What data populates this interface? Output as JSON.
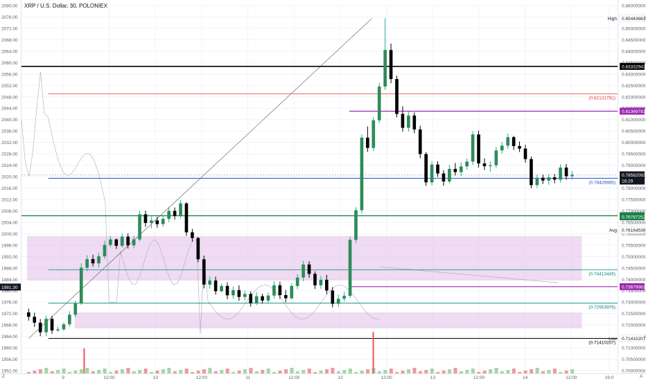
{
  "chart_data": {
    "type": "candlestick",
    "title": "XRP / U.S. Dollar, 30, POLONIEX",
    "x_ticks": [
      "9",
      "12:00",
      "10",
      "12:00",
      "11",
      "12:00",
      "12",
      "12:00",
      "13",
      "12:00",
      "14",
      "12:00",
      "19:0"
    ],
    "left_axis": {
      "ylim": [
        1952,
        2080
      ],
      "ticks": [
        "2080.00",
        "2076.00",
        "2072.00",
        "2068.00",
        "2064.00",
        "2060.00",
        "2056.00",
        "2052.00",
        "2048.00",
        "2044.00",
        "2040.00",
        "2036.00",
        "2032.00",
        "2028.00",
        "2024.00",
        "2020.00",
        "2016.00",
        "2012.00",
        "2008.00",
        "2004.00",
        "2000.00",
        "1996.00",
        "1992.00",
        "1988.00",
        "1984.00",
        "1980.00",
        "1976.00",
        "1972.00",
        "1968.00",
        "1964.00",
        "1960.00",
        "1956.00",
        "1952.00"
      ],
      "current_label": "1981.30"
    },
    "right_axis": {
      "ylim": [
        0.7,
        0.86
      ],
      "ticks": [
        "0.86000000",
        "0.85500000",
        "0.85000000",
        "0.84500000",
        "0.84000000",
        "0.83500000",
        "0.83000000",
        "0.82500000",
        "0.82000000",
        "0.81500000",
        "0.81000000",
        "0.80500000",
        "0.80000000",
        "0.79500000",
        "0.79000000",
        "0.78500000",
        "0.78000000",
        "0.77500000",
        "0.77000000",
        "0.76500000",
        "0.76000000",
        "0.75500000",
        "0.75000000",
        "0.74500000",
        "0.74000000",
        "0.73500000",
        "0.73000000",
        "0.72500000",
        "0.72000000",
        "0.71500000",
        "0.71000000",
        "0.70500000",
        "0.70000000"
      ]
    },
    "high": {
      "label": "High",
      "value": "0.85443663",
      "price": 0.85444
    },
    "low": {
      "label": "Low",
      "value": "0.71410207",
      "price": 0.7141
    },
    "avg": {
      "label": "Avg",
      "value": "0.76164530",
      "price": 0.7616
    },
    "last_price": {
      "value": "0.78582092",
      "countdown": "16:29",
      "price": 0.7858,
      "color": "#131722"
    },
    "levels": [
      {
        "price": 0.83333,
        "color": "#000000",
        "width": 1.6,
        "badge": "0.83332943",
        "start": 0.0
      },
      {
        "price": 0.82132,
        "color": "#e53935",
        "width": 0.8,
        "text": "(0.82131791)",
        "start": 0.045
      },
      {
        "price": 0.8137,
        "color": "#9c27b0",
        "width": 1.2,
        "badge": "0.81369783",
        "start": 0.55
      },
      {
        "price": 0.78427,
        "color": "#1e50c8",
        "width": 1.0,
        "text": "(0.78426985)",
        "start": 0.045
      },
      {
        "price": 0.76788,
        "color": "#1b7f4a",
        "width": 1.4,
        "badge": "0.76787874",
        "start": 0.0
      },
      {
        "price": 0.74413,
        "color": "#00897b",
        "width": 0.8,
        "text": "(0.74413445)",
        "start": 0.045
      },
      {
        "price": 0.7368,
        "color": "#9c27b0",
        "width": 1.2,
        "badge": "0.73679963",
        "start": 0.55
      },
      {
        "price": 0.72954,
        "color": "#00897b",
        "width": 0.8,
        "text": "(0.72953976)",
        "start": 0.045
      },
      {
        "price": 0.7141,
        "color": "#000000",
        "width": 1.0,
        "text": "(0.71410207)",
        "start": 0.045
      }
    ],
    "extra_badges": [
      {
        "value": "0.76787252",
        "price": 0.7674,
        "color": "#1b7f4a"
      }
    ],
    "zones": [
      {
        "from": 0.7395,
        "to": 0.759,
        "color": "#e1bee7",
        "x0": 0.0,
        "x1": 0.94
      },
      {
        "from": 0.7185,
        "to": 0.7255,
        "color": "#e1bee7",
        "x0": 0.08,
        "x1": 0.94
      }
    ],
    "trendline": {
      "from": {
        "x": 0.012,
        "price": 0.7141
      },
      "to": {
        "x": 0.588,
        "price": 0.8544
      }
    },
    "candles": [
      {
        "o": 0.7255,
        "h": 0.7272,
        "l": 0.7219,
        "c": 0.7236
      },
      {
        "o": 0.7236,
        "h": 0.7254,
        "l": 0.7192,
        "c": 0.721
      },
      {
        "o": 0.721,
        "h": 0.7226,
        "l": 0.7151,
        "c": 0.7168
      },
      {
        "o": 0.7168,
        "h": 0.7242,
        "l": 0.7152,
        "c": 0.7227
      },
      {
        "o": 0.7227,
        "h": 0.724,
        "l": 0.7161,
        "c": 0.7176
      },
      {
        "o": 0.7176,
        "h": 0.7193,
        "l": 0.717,
        "c": 0.7181
      },
      {
        "o": 0.7181,
        "h": 0.721,
        "l": 0.7175,
        "c": 0.7203
      },
      {
        "o": 0.7203,
        "h": 0.726,
        "l": 0.7192,
        "c": 0.7245
      },
      {
        "o": 0.7245,
        "h": 0.7307,
        "l": 0.7233,
        "c": 0.7294
      },
      {
        "o": 0.7294,
        "h": 0.747,
        "l": 0.7288,
        "c": 0.7451
      },
      {
        "o": 0.7451,
        "h": 0.7506,
        "l": 0.7436,
        "c": 0.7489
      },
      {
        "o": 0.7489,
        "h": 0.7508,
        "l": 0.7457,
        "c": 0.747
      },
      {
        "o": 0.747,
        "h": 0.7517,
        "l": 0.7452,
        "c": 0.7501
      },
      {
        "o": 0.7501,
        "h": 0.7569,
        "l": 0.7489,
        "c": 0.7551
      },
      {
        "o": 0.7551,
        "h": 0.7589,
        "l": 0.754,
        "c": 0.7575
      },
      {
        "o": 0.7575,
        "h": 0.7579,
        "l": 0.7533,
        "c": 0.7547
      },
      {
        "o": 0.7547,
        "h": 0.7602,
        "l": 0.7539,
        "c": 0.7587
      },
      {
        "o": 0.7587,
        "h": 0.7602,
        "l": 0.7535,
        "c": 0.7549
      },
      {
        "o": 0.7549,
        "h": 0.7591,
        "l": 0.7537,
        "c": 0.7575
      },
      {
        "o": 0.7575,
        "h": 0.77,
        "l": 0.7567,
        "c": 0.7685
      },
      {
        "o": 0.7685,
        "h": 0.7701,
        "l": 0.763,
        "c": 0.7647
      },
      {
        "o": 0.7647,
        "h": 0.7675,
        "l": 0.7623,
        "c": 0.7658
      },
      {
        "o": 0.7658,
        "h": 0.7674,
        "l": 0.7626,
        "c": 0.7642
      },
      {
        "o": 0.7642,
        "h": 0.7678,
        "l": 0.7631,
        "c": 0.7665
      },
      {
        "o": 0.7665,
        "h": 0.7718,
        "l": 0.7651,
        "c": 0.77
      },
      {
        "o": 0.77,
        "h": 0.7715,
        "l": 0.7662,
        "c": 0.7678
      },
      {
        "o": 0.7678,
        "h": 0.7748,
        "l": 0.7668,
        "c": 0.7733
      },
      {
        "o": 0.7733,
        "h": 0.7738,
        "l": 0.7591,
        "c": 0.7606
      },
      {
        "o": 0.7606,
        "h": 0.7621,
        "l": 0.7565,
        "c": 0.7581
      },
      {
        "o": 0.7581,
        "h": 0.7586,
        "l": 0.7475,
        "c": 0.7488
      },
      {
        "o": 0.7488,
        "h": 0.7504,
        "l": 0.736,
        "c": 0.7377
      },
      {
        "o": 0.7377,
        "h": 0.7413,
        "l": 0.7359,
        "c": 0.7395
      },
      {
        "o": 0.7395,
        "h": 0.7412,
        "l": 0.7333,
        "c": 0.7348
      },
      {
        "o": 0.7348,
        "h": 0.7381,
        "l": 0.7343,
        "c": 0.7371
      },
      {
        "o": 0.7371,
        "h": 0.7387,
        "l": 0.7313,
        "c": 0.733
      },
      {
        "o": 0.733,
        "h": 0.7369,
        "l": 0.7316,
        "c": 0.7353
      },
      {
        "o": 0.7353,
        "h": 0.7374,
        "l": 0.7306,
        "c": 0.7323
      },
      {
        "o": 0.7323,
        "h": 0.735,
        "l": 0.7307,
        "c": 0.7336
      },
      {
        "o": 0.7336,
        "h": 0.7347,
        "l": 0.728,
        "c": 0.7296
      },
      {
        "o": 0.7296,
        "h": 0.7343,
        "l": 0.7287,
        "c": 0.7326
      },
      {
        "o": 0.7326,
        "h": 0.7337,
        "l": 0.7294,
        "c": 0.7307
      },
      {
        "o": 0.7307,
        "h": 0.7343,
        "l": 0.7297,
        "c": 0.7329
      },
      {
        "o": 0.7329,
        "h": 0.7392,
        "l": 0.7315,
        "c": 0.7374
      },
      {
        "o": 0.7374,
        "h": 0.739,
        "l": 0.7314,
        "c": 0.7331
      },
      {
        "o": 0.7331,
        "h": 0.7353,
        "l": 0.73,
        "c": 0.7317
      },
      {
        "o": 0.7317,
        "h": 0.7383,
        "l": 0.7312,
        "c": 0.7371
      },
      {
        "o": 0.7371,
        "h": 0.7422,
        "l": 0.7357,
        "c": 0.7408
      },
      {
        "o": 0.7408,
        "h": 0.7481,
        "l": 0.7392,
        "c": 0.7465
      },
      {
        "o": 0.7465,
        "h": 0.748,
        "l": 0.7407,
        "c": 0.7424
      },
      {
        "o": 0.7424,
        "h": 0.7435,
        "l": 0.7358,
        "c": 0.7374
      },
      {
        "o": 0.7374,
        "h": 0.7414,
        "l": 0.7359,
        "c": 0.7398
      },
      {
        "o": 0.7398,
        "h": 0.742,
        "l": 0.7335,
        "c": 0.7351
      },
      {
        "o": 0.7351,
        "h": 0.7366,
        "l": 0.7277,
        "c": 0.7293
      },
      {
        "o": 0.7293,
        "h": 0.7333,
        "l": 0.7279,
        "c": 0.7315
      },
      {
        "o": 0.7315,
        "h": 0.7345,
        "l": 0.7303,
        "c": 0.7328
      },
      {
        "o": 0.7328,
        "h": 0.7586,
        "l": 0.7318,
        "c": 0.7573
      },
      {
        "o": 0.7573,
        "h": 0.7716,
        "l": 0.7559,
        "c": 0.7703
      },
      {
        "o": 0.7703,
        "h": 0.8035,
        "l": 0.7688,
        "c": 0.8021
      },
      {
        "o": 0.8021,
        "h": 0.807,
        "l": 0.7959,
        "c": 0.7976
      },
      {
        "o": 0.7976,
        "h": 0.8112,
        "l": 0.7962,
        "c": 0.8097
      },
      {
        "o": 0.8097,
        "h": 0.8262,
        "l": 0.8085,
        "c": 0.8245
      },
      {
        "o": 0.8245,
        "h": 0.8544,
        "l": 0.823,
        "c": 0.8405
      },
      {
        "o": 0.8405,
        "h": 0.8433,
        "l": 0.826,
        "c": 0.8278
      },
      {
        "o": 0.8278,
        "h": 0.8293,
        "l": 0.811,
        "c": 0.8125
      },
      {
        "o": 0.8125,
        "h": 0.8159,
        "l": 0.8047,
        "c": 0.8064
      },
      {
        "o": 0.8064,
        "h": 0.8136,
        "l": 0.8047,
        "c": 0.8118
      },
      {
        "o": 0.8118,
        "h": 0.8132,
        "l": 0.804,
        "c": 0.8057
      },
      {
        "o": 0.8057,
        "h": 0.8073,
        "l": 0.7931,
        "c": 0.7949
      },
      {
        "o": 0.7949,
        "h": 0.7957,
        "l": 0.781,
        "c": 0.7825
      },
      {
        "o": 0.7825,
        "h": 0.7918,
        "l": 0.7812,
        "c": 0.7903
      },
      {
        "o": 0.7903,
        "h": 0.7918,
        "l": 0.7849,
        "c": 0.7864
      },
      {
        "o": 0.7864,
        "h": 0.7879,
        "l": 0.781,
        "c": 0.7829
      },
      {
        "o": 0.7829,
        "h": 0.7901,
        "l": 0.782,
        "c": 0.7884
      },
      {
        "o": 0.7884,
        "h": 0.791,
        "l": 0.7855,
        "c": 0.787
      },
      {
        "o": 0.787,
        "h": 0.7913,
        "l": 0.7852,
        "c": 0.7895
      },
      {
        "o": 0.7895,
        "h": 0.793,
        "l": 0.788,
        "c": 0.7916
      },
      {
        "o": 0.7916,
        "h": 0.805,
        "l": 0.7901,
        "c": 0.8035
      },
      {
        "o": 0.8035,
        "h": 0.8052,
        "l": 0.789,
        "c": 0.7908
      },
      {
        "o": 0.7908,
        "h": 0.793,
        "l": 0.7879,
        "c": 0.7896
      },
      {
        "o": 0.7896,
        "h": 0.7917,
        "l": 0.7872,
        "c": 0.79
      },
      {
        "o": 0.79,
        "h": 0.798,
        "l": 0.7888,
        "c": 0.7965
      },
      {
        "o": 0.7965,
        "h": 0.8002,
        "l": 0.7951,
        "c": 0.7986
      },
      {
        "o": 0.7986,
        "h": 0.804,
        "l": 0.7972,
        "c": 0.8023
      },
      {
        "o": 0.8023,
        "h": 0.8029,
        "l": 0.7967,
        "c": 0.7984
      },
      {
        "o": 0.7984,
        "h": 0.8004,
        "l": 0.7958,
        "c": 0.7973
      },
      {
        "o": 0.7973,
        "h": 0.799,
        "l": 0.7911,
        "c": 0.7927
      },
      {
        "o": 0.7927,
        "h": 0.7938,
        "l": 0.7799,
        "c": 0.7813
      },
      {
        "o": 0.7813,
        "h": 0.786,
        "l": 0.7801,
        "c": 0.7845
      },
      {
        "o": 0.7845,
        "h": 0.7859,
        "l": 0.7818,
        "c": 0.7833
      },
      {
        "o": 0.7833,
        "h": 0.7862,
        "l": 0.7814,
        "c": 0.7847
      },
      {
        "o": 0.7847,
        "h": 0.7862,
        "l": 0.7821,
        "c": 0.7837
      },
      {
        "o": 0.7837,
        "h": 0.7905,
        "l": 0.7824,
        "c": 0.789
      },
      {
        "o": 0.789,
        "h": 0.7906,
        "l": 0.7836,
        "c": 0.7852
      },
      {
        "o": 0.7852,
        "h": 0.7874,
        "l": 0.7837,
        "c": 0.7858
      }
    ],
    "vol_spikes": [
      {
        "x": 0.104,
        "size": 0.6
      },
      {
        "x": 0.589,
        "size": 1.0
      }
    ]
  }
}
